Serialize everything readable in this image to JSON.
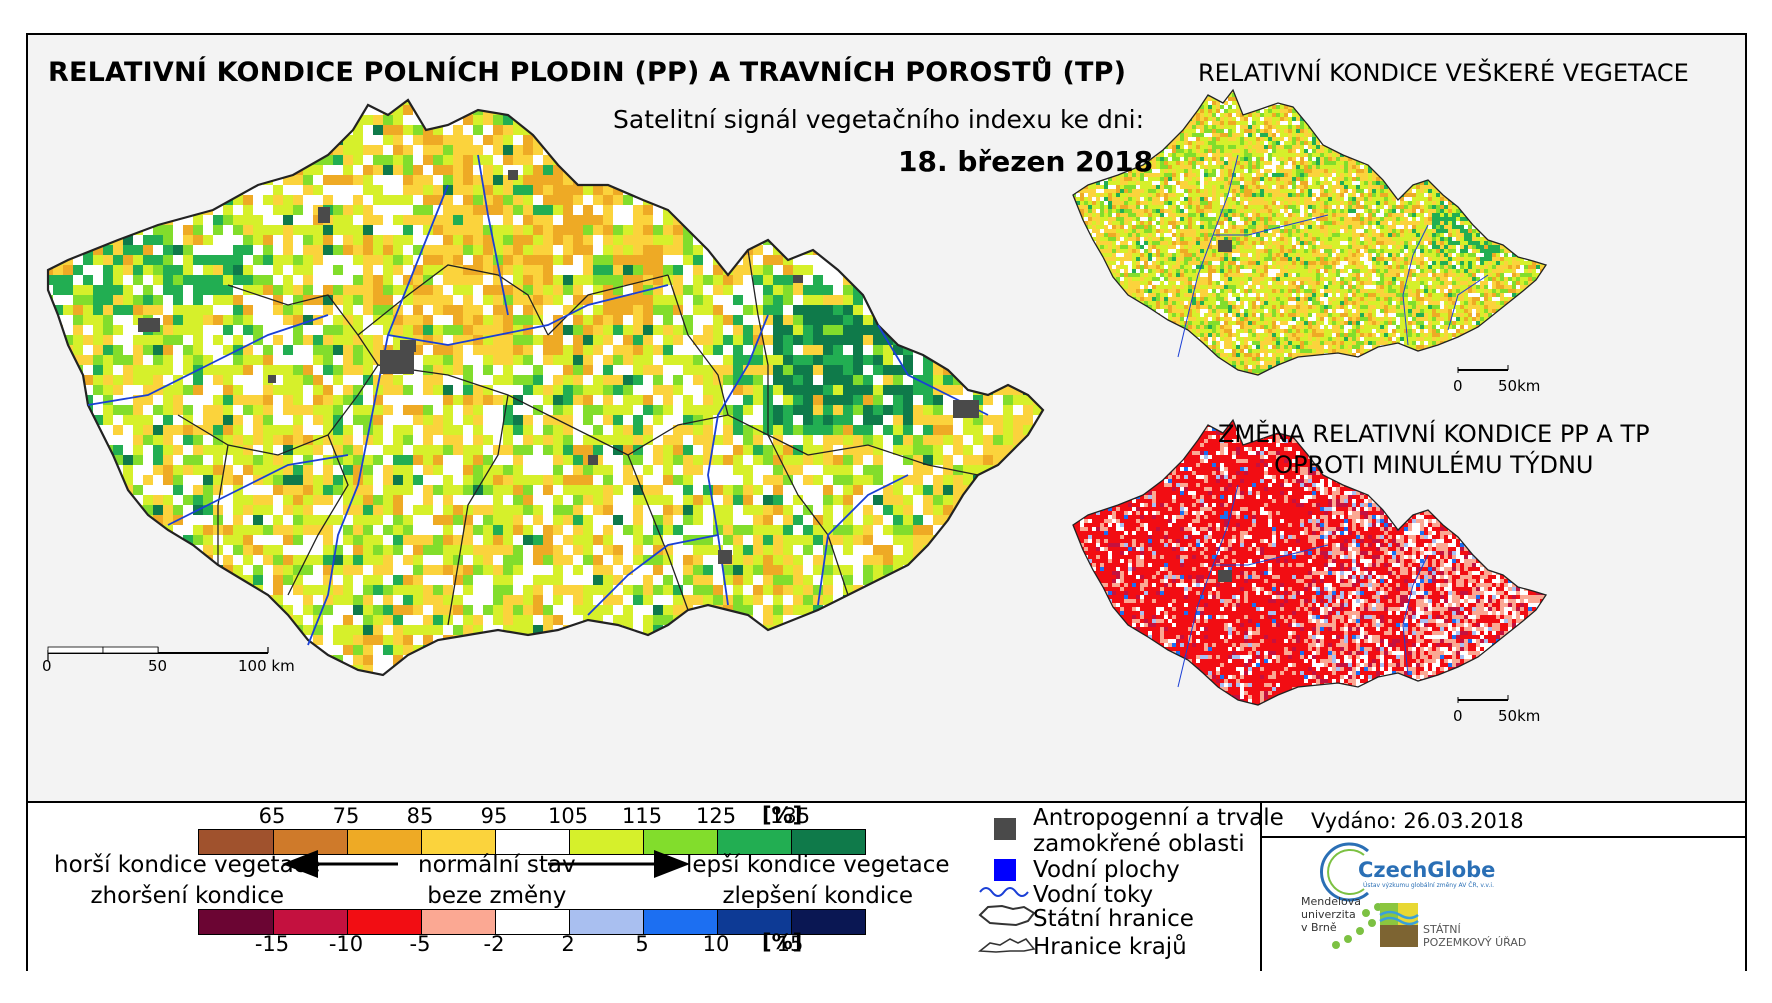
{
  "titles": {
    "main": "RELATIVNÍ KONDICE POLNÍCH PLODIN (PP) A TRAVNÍCH POROSTŮ (TP)",
    "subtitle": "Satelitní signál vegetačního indexu ke dni:",
    "date": "18. březen 2018",
    "right_top": "RELATIVNÍ KONDICE VEŠKERÉ VEGETACE",
    "right_bottom_line1": "ZMĚNA RELATIVNÍ KONDICE PP A TP",
    "right_bottom_line2": "OPROTI MINULÉMU TÝDNU"
  },
  "scales": {
    "main": {
      "labels": [
        "0",
        "50",
        "100 km"
      ]
    },
    "small_top": {
      "labels": [
        "0",
        "50km"
      ]
    },
    "small_bottom": {
      "labels": [
        "0",
        "50km"
      ]
    }
  },
  "legend": {
    "condition": {
      "ticks": [
        "65",
        "75",
        "85",
        "95",
        "105",
        "115",
        "125",
        "135"
      ],
      "unit": "[%]",
      "colors": [
        "#a0522d",
        "#cf7a2a",
        "#eeaa25",
        "#fbd33c",
        "#ffffff",
        "#d6f02b",
        "#82dd2c",
        "#22ae52",
        "#0f7a4a"
      ]
    },
    "change": {
      "ticks": [
        "-15",
        "-10",
        "-5",
        "-2",
        "2",
        "5",
        "10",
        "15"
      ],
      "unit": "[%]",
      "colors": [
        "#6b0533",
        "#c4113f",
        "#f20d13",
        "#fba893",
        "#ffffff",
        "#a9bff0",
        "#1c6ff2",
        "#0d3a95",
        "#0a1753"
      ]
    },
    "worse_line1": "horší kondice vegetace",
    "worse_line2": "zhoršení kondice",
    "normal_line1": "normální stav",
    "normal_line2": "beze změny",
    "better_line1": "lepší kondice vegetace",
    "better_line2": "zlepšení kondice"
  },
  "symbols": {
    "anthropogenic_line1": "Antropogenní a trvale",
    "anthropogenic_line2": "zamokřené oblasti",
    "water_bodies": "Vodní plochy",
    "rivers": "Vodní toky",
    "state_border": "Státní hranice",
    "regional_border": "Hranice krajů"
  },
  "footer": {
    "issued": "Vydáno: 26.03.2018",
    "czechglobe": "CzechGlobe",
    "czechglobe_sub": "Ústav výzkumu globální změny AV ČR, v.v.i.",
    "mendel_line1": "Mendelova",
    "mendel_line2": "univerzita",
    "mendel_line3": "v Brně",
    "spu_line1": "STÁTNÍ",
    "spu_line2": "POZEMKOVÝ ÚŘAD"
  },
  "colors": {
    "background_panel": "#f3f3f3",
    "river": "#1a3fd6",
    "anthropogenic": "#4a4a4a",
    "water": "#0000ff"
  },
  "maps": {
    "main": {
      "dominant_classes": [
        "#fbd33c",
        "#eeaa25",
        "#ffffff",
        "#d6f02b",
        "#82dd2c",
        "#22ae52",
        "#0f7a4a"
      ],
      "share": [
        0.18,
        0.08,
        0.3,
        0.26,
        0.12,
        0.04,
        0.02
      ]
    },
    "small_vegetation": {
      "dominant_classes": [
        "#fbd33c",
        "#eeaa25",
        "#d6f02b",
        "#82dd2c",
        "#ffffff",
        "#22ae52"
      ],
      "share": [
        0.28,
        0.12,
        0.3,
        0.14,
        0.12,
        0.04
      ]
    },
    "small_change": {
      "dominant_classes": [
        "#f20d13",
        "#c4113f",
        "#fba893",
        "#ffffff",
        "#a9bff0",
        "#1c6ff2"
      ],
      "share": [
        0.42,
        0.1,
        0.24,
        0.16,
        0.05,
        0.03
      ]
    }
  }
}
